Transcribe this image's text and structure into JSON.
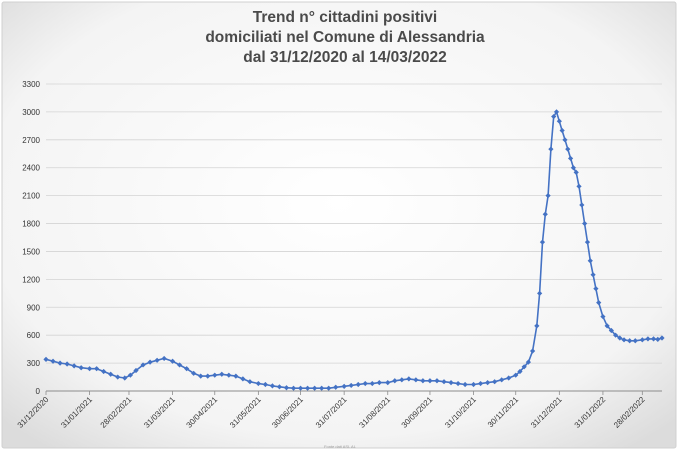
{
  "chart_data": {
    "type": "line",
    "title_lines": [
      "Trend n° cittadini positivi",
      "domiciliati nel Comune di Alessandria",
      "dal 31/12/2020 al 14/03/2022"
    ],
    "xlabel": "",
    "ylabel": "",
    "ylim": [
      0,
      3300
    ],
    "yticks": [
      0,
      300,
      600,
      900,
      1200,
      1500,
      1800,
      2100,
      2400,
      2700,
      3000,
      3300
    ],
    "xtick_labels": [
      "31/12/2020",
      "31/01/2021",
      "28/02/2021",
      "31/03/2021",
      "30/04/2021",
      "31/05/2021",
      "30/06/2021",
      "31/07/2021",
      "31/08/2021",
      "30/09/2021",
      "31/10/2021",
      "30/11/2021",
      "31/12/2021",
      "31/01/2022",
      "28/02/2022"
    ],
    "grid": "horizontal",
    "legend": "none",
    "series_color": "#4472c4",
    "marker": "diamond",
    "footnote": "Fonte dati ASL AL",
    "series": [
      {
        "x": [
          "2020-12-31",
          "2021-01-05",
          "2021-01-10",
          "2021-01-15",
          "2021-01-20",
          "2021-01-25",
          "2021-01-31",
          "2021-02-05",
          "2021-02-10",
          "2021-02-15",
          "2021-02-20",
          "2021-02-25",
          "2021-03-01",
          "2021-03-05",
          "2021-03-10",
          "2021-03-15",
          "2021-03-20",
          "2021-03-25",
          "2021-03-31",
          "2021-04-05",
          "2021-04-10",
          "2021-04-15",
          "2021-04-20",
          "2021-04-25",
          "2021-04-30",
          "2021-05-05",
          "2021-05-10",
          "2021-05-15",
          "2021-05-20",
          "2021-05-25",
          "2021-05-31",
          "2021-06-05",
          "2021-06-10",
          "2021-06-15",
          "2021-06-20",
          "2021-06-25",
          "2021-06-30",
          "2021-07-05",
          "2021-07-10",
          "2021-07-15",
          "2021-07-20",
          "2021-07-25",
          "2021-07-31",
          "2021-08-05",
          "2021-08-10",
          "2021-08-15",
          "2021-08-20",
          "2021-08-25",
          "2021-08-31",
          "2021-09-05",
          "2021-09-10",
          "2021-09-15",
          "2021-09-20",
          "2021-09-25",
          "2021-09-30",
          "2021-10-05",
          "2021-10-10",
          "2021-10-15",
          "2021-10-20",
          "2021-10-25",
          "2021-10-31",
          "2021-11-05",
          "2021-11-10",
          "2021-11-15",
          "2021-11-20",
          "2021-11-25",
          "2021-11-30",
          "2021-12-03",
          "2021-12-06",
          "2021-12-09",
          "2021-12-12",
          "2021-12-15",
          "2021-12-17",
          "2021-12-19",
          "2021-12-21",
          "2021-12-23",
          "2021-12-25",
          "2021-12-27",
          "2021-12-29",
          "2021-12-31",
          "2022-01-02",
          "2022-01-04",
          "2022-01-06",
          "2022-01-08",
          "2022-01-10",
          "2022-01-12",
          "2022-01-14",
          "2022-01-16",
          "2022-01-18",
          "2022-01-20",
          "2022-01-22",
          "2022-01-24",
          "2022-01-26",
          "2022-01-28",
          "2022-01-31",
          "2022-02-03",
          "2022-02-06",
          "2022-02-09",
          "2022-02-12",
          "2022-02-15",
          "2022-02-19",
          "2022-02-23",
          "2022-02-28",
          "2022-03-04",
          "2022-03-08",
          "2022-03-11",
          "2022-03-14"
        ],
        "values": [
          340,
          320,
          300,
          290,
          270,
          250,
          240,
          240,
          210,
          180,
          150,
          140,
          170,
          220,
          280,
          310,
          330,
          350,
          320,
          280,
          240,
          190,
          160,
          160,
          170,
          180,
          170,
          160,
          130,
          100,
          80,
          70,
          55,
          45,
          35,
          30,
          30,
          30,
          30,
          30,
          30,
          40,
          50,
          60,
          70,
          80,
          80,
          90,
          90,
          110,
          120,
          130,
          120,
          110,
          110,
          110,
          100,
          90,
          80,
          70,
          70,
          80,
          90,
          100,
          120,
          140,
          170,
          210,
          260,
          310,
          430,
          700,
          1050,
          1600,
          1900,
          2100,
          2600,
          2950,
          3000,
          2900,
          2800,
          2700,
          2600,
          2500,
          2400,
          2350,
          2200,
          2000,
          1800,
          1600,
          1400,
          1250,
          1100,
          950,
          800,
          700,
          650,
          600,
          570,
          550,
          540,
          540,
          550,
          560,
          560,
          555,
          570
        ]
      }
    ]
  }
}
